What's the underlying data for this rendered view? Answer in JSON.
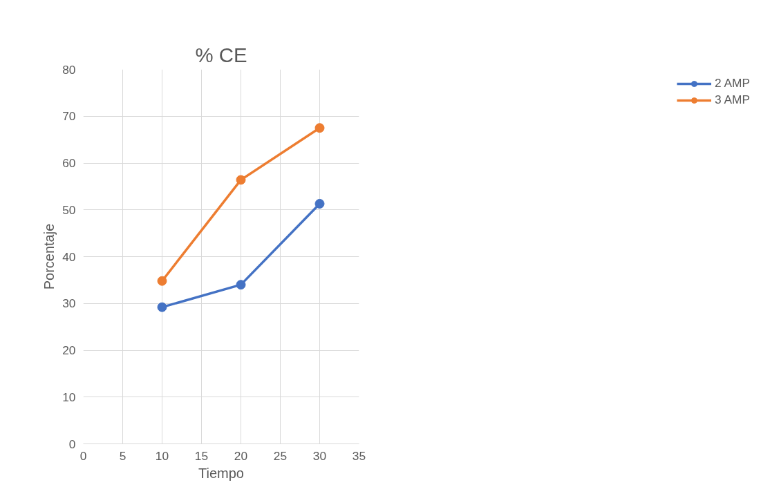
{
  "chart_data": {
    "type": "line",
    "title": "% CE",
    "xlabel": "Tiempo",
    "ylabel": "Porcentaje",
    "x": [
      10,
      20,
      30
    ],
    "series": [
      {
        "name": "2 AMP",
        "color": "#4472c4",
        "values": [
          29.2,
          34.0,
          51.3
        ]
      },
      {
        "name": "3 AMP",
        "color": "#ed7d31",
        "values": [
          34.8,
          56.4,
          67.5
        ]
      }
    ],
    "xlim": [
      0,
      35
    ],
    "xticks": [
      0,
      5,
      10,
      15,
      20,
      25,
      30,
      35
    ],
    "ylim": [
      0,
      80
    ],
    "yticks": [
      0,
      10,
      20,
      30,
      40,
      50,
      60,
      70,
      80
    ],
    "grid": true,
    "legend": "right",
    "marker": "circle",
    "line_style": "solid"
  }
}
